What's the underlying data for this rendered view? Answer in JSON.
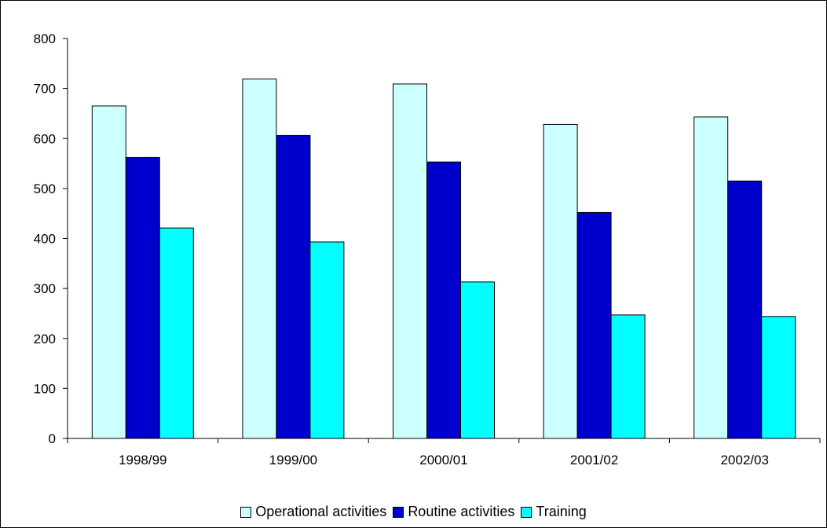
{
  "chart_data": {
    "type": "bar",
    "categories": [
      "1998/99",
      "1999/00",
      "2000/01",
      "2001/02",
      "2002/03"
    ],
    "series": [
      {
        "name": "Operational activities",
        "color": "#ccffff",
        "values": [
          665,
          719,
          709,
          628,
          643
        ]
      },
      {
        "name": "Routine activities",
        "color": "#0000cc",
        "values": [
          562,
          606,
          553,
          452,
          515
        ]
      },
      {
        "name": "Training",
        "color": "#00ffff",
        "values": [
          421,
          393,
          313,
          247,
          244
        ]
      }
    ],
    "ylim": [
      0,
      800
    ],
    "yticks": [
      "0",
      "100",
      "200",
      "300",
      "400",
      "500",
      "600",
      "700",
      "800"
    ],
    "grid": false,
    "legend_position": "bottom"
  }
}
